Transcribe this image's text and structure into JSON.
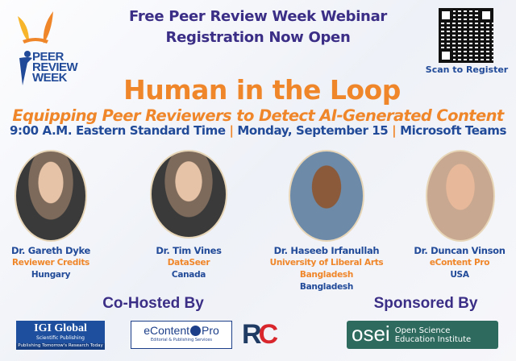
{
  "logo": {
    "text": "PEER REVIEW WEEK"
  },
  "header": {
    "line1": "Free Peer Review Week Webinar",
    "line2": "Registration Now Open"
  },
  "qr": {
    "label": "Scan to Register"
  },
  "title": "Human in the Loop",
  "subtitle": "Equipping Peer Reviewers to Detect AI-Generated Content",
  "details": {
    "time": "9:00 A.M. Eastern Standard Time",
    "sep": "|",
    "date": "Monday, September 15",
    "platform": "Microsoft Teams"
  },
  "speakers": [
    {
      "name": "Dr. Gareth Dyke",
      "org": "Reviewer Credits",
      "country": "Hungary"
    },
    {
      "name": "Dr. Tim Vines",
      "org": "DataSeer",
      "country": "Canada"
    },
    {
      "name": "Dr. Haseeb Irfanullah",
      "org": "University of Liberal Arts Bangladesh",
      "country": "Bangladesh"
    },
    {
      "name": "Dr. Duncan Vinson",
      "org": "eContent Pro",
      "country": "USA"
    }
  ],
  "cohosted": {
    "heading": "Co-Hosted By",
    "igi": {
      "name": "IGI Global",
      "sub": "Scientific Publishing",
      "tag": "Publishing Tomorrow's Research Today"
    },
    "econtent": {
      "name": "eContent",
      "pro": "Pro",
      "sub": "Editorial & Publishing Services"
    },
    "rc": "RC"
  },
  "sponsored": {
    "heading": "Sponsored By",
    "osei": {
      "mark": "osei",
      "line1": "Open Science",
      "line2": "Education Institute"
    }
  },
  "colors": {
    "purple": "#3b2e86",
    "orange": "#f0862a",
    "blue": "#214a98",
    "osei": "#2e6b5e"
  }
}
